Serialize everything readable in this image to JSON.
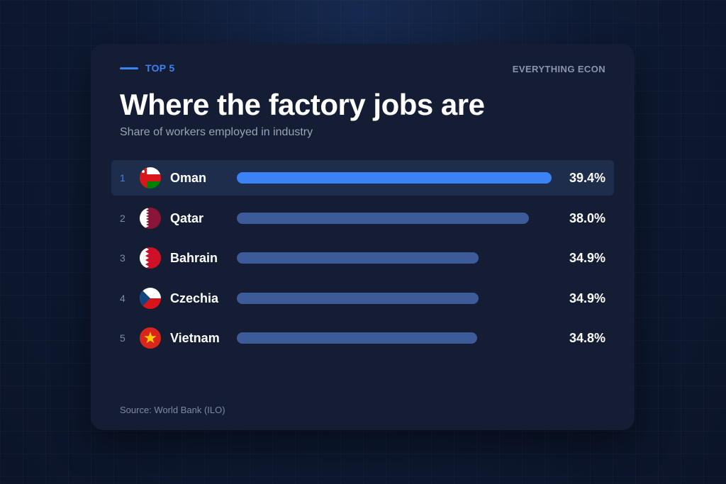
{
  "header": {
    "tag": "TOP 5",
    "brand": "EVERYTHING ECON",
    "title": "Where the factory jobs are",
    "subtitle": "Share of workers employed in industry"
  },
  "footer": {
    "source": "Source: World Bank (ILO)"
  },
  "colors": {
    "accent": "#3b82f6",
    "bar": "#3d5b99",
    "card": "#141d33"
  },
  "rows": [
    {
      "rank": "1",
      "country": "Oman",
      "flag_icon": "oman-flag-icon",
      "value_label": "39.4%"
    },
    {
      "rank": "2",
      "country": "Qatar",
      "flag_icon": "qatar-flag-icon",
      "value_label": "38.0%"
    },
    {
      "rank": "3",
      "country": "Bahrain",
      "flag_icon": "bahrain-flag-icon",
      "value_label": "34.9%"
    },
    {
      "rank": "4",
      "country": "Czechia",
      "flag_icon": "czechia-flag-icon",
      "value_label": "34.9%"
    },
    {
      "rank": "5",
      "country": "Vietnam",
      "flag_icon": "vietnam-flag-icon",
      "value_label": "34.8%"
    }
  ],
  "chart_data": {
    "type": "bar",
    "orientation": "horizontal",
    "categories": [
      "Oman",
      "Qatar",
      "Bahrain",
      "Czechia",
      "Vietnam"
    ],
    "values": [
      39.4,
      38.0,
      34.9,
      34.9,
      34.8
    ],
    "unit": "%",
    "highlighted": "Oman",
    "grid": false
  }
}
